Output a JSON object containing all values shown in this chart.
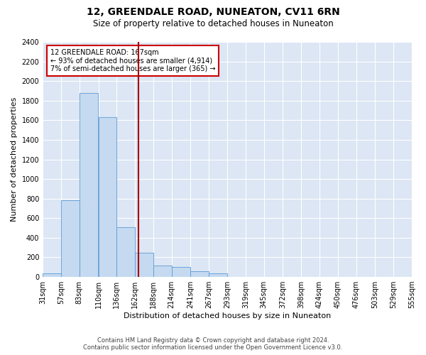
{
  "title": "12, GREENDALE ROAD, NUNEATON, CV11 6RN",
  "subtitle": "Size of property relative to detached houses in Nuneaton",
  "xlabel": "Distribution of detached houses by size in Nuneaton",
  "ylabel": "Number of detached properties",
  "property_label": "12 GREENDALE ROAD: 167sqm",
  "annotation_line1": "← 93% of detached houses are smaller (4,914)",
  "annotation_line2": "7% of semi-detached houses are larger (365) →",
  "footer_line1": "Contains HM Land Registry data © Crown copyright and database right 2024.",
  "footer_line2": "Contains public sector information licensed under the Open Government Licence v3.0.",
  "bin_edges": [
    31,
    57,
    83,
    110,
    136,
    162,
    188,
    214,
    241,
    267,
    293,
    319,
    345,
    372,
    398,
    424,
    450,
    476,
    503,
    529,
    555
  ],
  "bar_heights": [
    40,
    780,
    1880,
    1630,
    510,
    250,
    120,
    100,
    55,
    40,
    0,
    0,
    0,
    0,
    0,
    0,
    0,
    0,
    0,
    0
  ],
  "bar_color": "#c5d9f0",
  "bar_edge_color": "#5b9bd5",
  "vline_color": "#aa0000",
  "vline_x": 167,
  "annotation_box_color": "#cc0000",
  "fig_bg_color": "#ffffff",
  "plot_bg_color": "#dce6f4",
  "grid_color": "#ffffff",
  "ylim": [
    0,
    2400
  ],
  "ytick_step": 200,
  "title_fontsize": 10,
  "subtitle_fontsize": 8.5,
  "tick_fontsize": 7,
  "ylabel_fontsize": 8,
  "xlabel_fontsize": 8,
  "footer_fontsize": 6
}
